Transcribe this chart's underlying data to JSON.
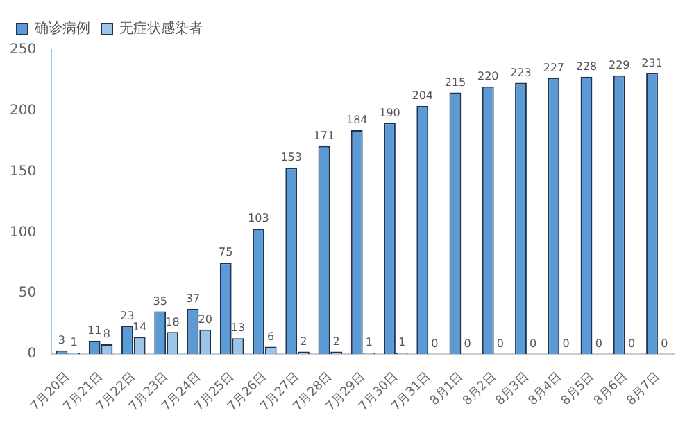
{
  "chart_data": {
    "type": "bar",
    "categories": [
      "7月20日",
      "7月21日",
      "7月22日",
      "7月23日",
      "7月24日",
      "7月25日",
      "7月26日",
      "7月27日",
      "7月28日",
      "7月29日",
      "7月30日",
      "7月31日",
      "8月1日",
      "8月2日",
      "8月3日",
      "8月4日",
      "8月5日",
      "8月6日",
      "8月7日"
    ],
    "series": [
      {
        "name": "确诊病例",
        "color": "#5b9bd5",
        "values": [
          3,
          11,
          23,
          35,
          37,
          75,
          103,
          153,
          171,
          184,
          190,
          204,
          215,
          220,
          223,
          227,
          228,
          229,
          231
        ]
      },
      {
        "name": "无症状感染者",
        "color": "#9dc3e6",
        "values": [
          1,
          8,
          14,
          18,
          20,
          13,
          6,
          2,
          2,
          1,
          1,
          0,
          0,
          0,
          0,
          0,
          0,
          0,
          0
        ]
      }
    ],
    "ylim": [
      0,
      250
    ],
    "yticks": [
      0,
      50,
      100,
      150,
      200,
      250
    ],
    "grid": false,
    "legend": "top left",
    "data_labels": true
  }
}
